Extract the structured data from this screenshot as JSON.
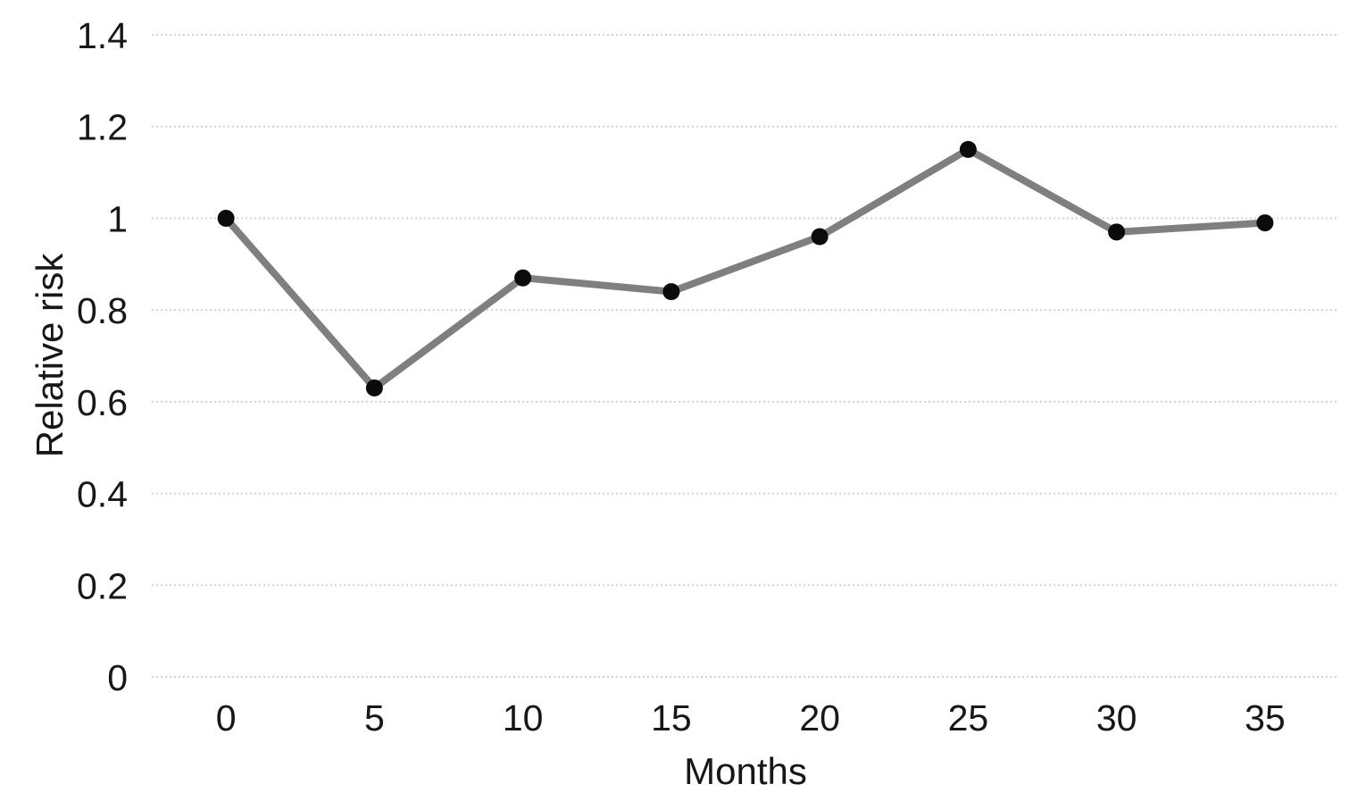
{
  "chart_data": {
    "type": "line",
    "title": "",
    "xlabel": "Months",
    "ylabel": "Relative risk",
    "x": [
      0,
      5,
      10,
      15,
      20,
      25,
      30,
      35
    ],
    "xtick_labels": [
      "0",
      "5",
      "10",
      "15",
      "20",
      "25",
      "30",
      "35"
    ],
    "series": [
      {
        "name": "Relative risk",
        "values": [
          1.0,
          0.63,
          0.87,
          0.84,
          0.96,
          1.15,
          0.97,
          0.99
        ]
      }
    ],
    "ylim": [
      0,
      1.4
    ],
    "ytick_step": 0.2,
    "ytick_labels": [
      "0",
      "0.2",
      "0.4",
      "0.6",
      "0.8",
      "1",
      "1.2",
      "1.4"
    ],
    "ytick_values": [
      0,
      0.2,
      0.4,
      0.6,
      0.8,
      1.0,
      1.2,
      1.4
    ],
    "grid": "horizontal-dotted",
    "legend": "none",
    "colors": {
      "line": "#7f7f7f",
      "marker": "#0b0b0b",
      "gridline": "#d2d2d2",
      "text": "#171717",
      "background": "#ffffff"
    }
  }
}
